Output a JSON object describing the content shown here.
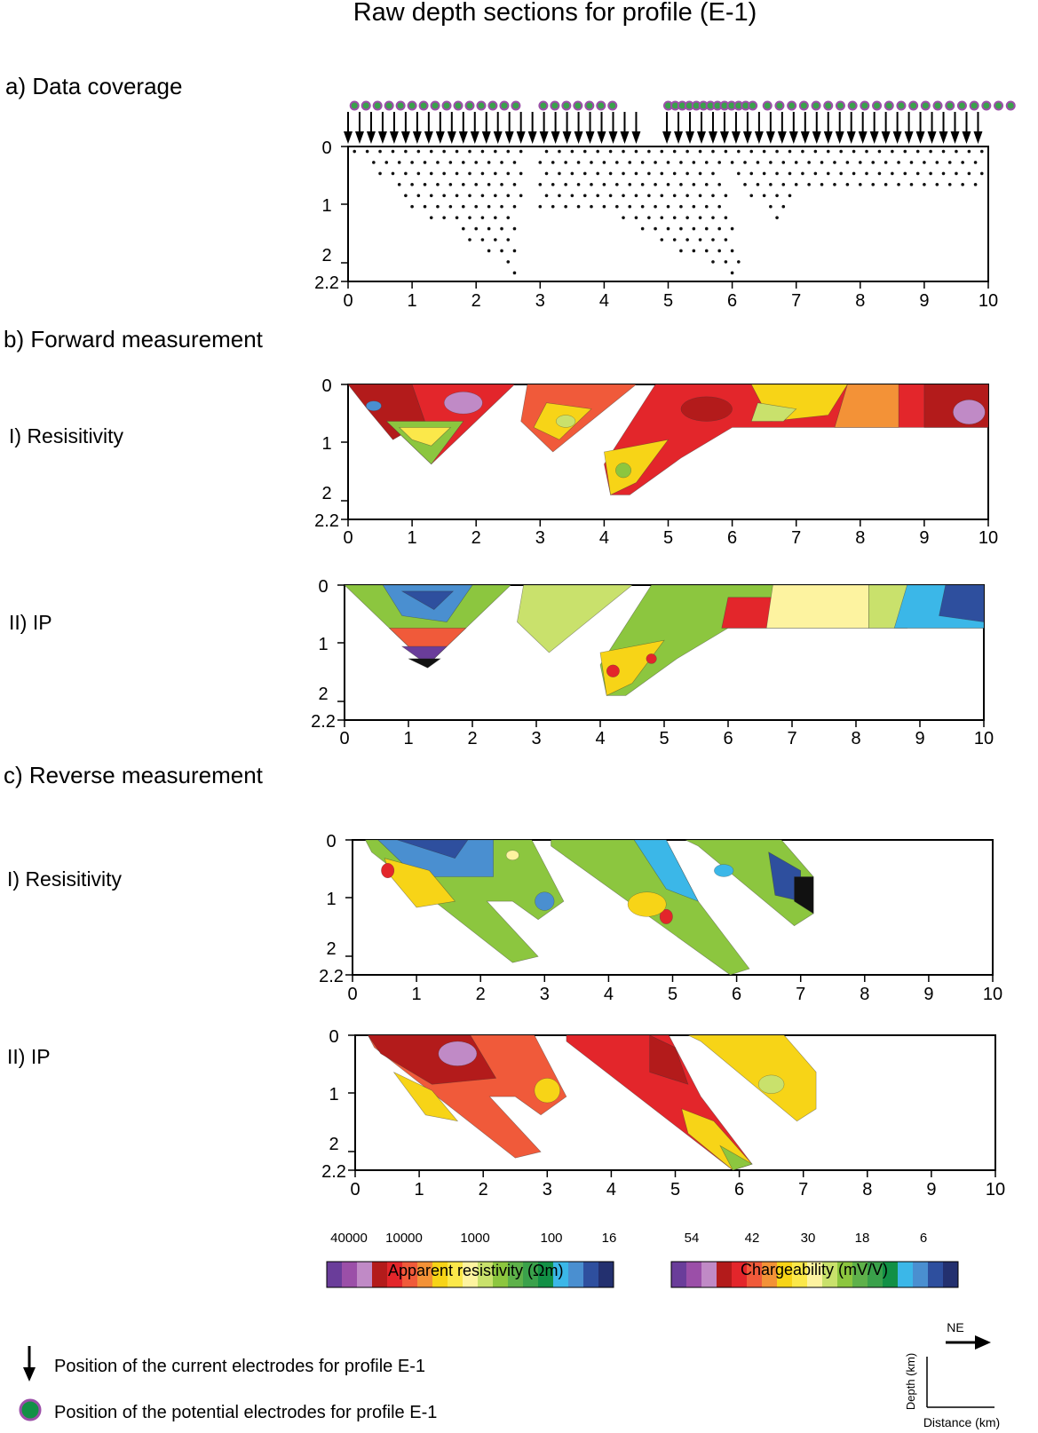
{
  "title": "Raw depth sections for profile (E-1)",
  "sections": {
    "a": {
      "label": "a)  Data coverage"
    },
    "b": {
      "label": "b) Forward measurement",
      "res": "I)  Resisitivity",
      "ip": "II) IP"
    },
    "c": {
      "label": "c) Reverse measurement",
      "res": "I)  Resisitivity",
      "ip": "II) IP"
    }
  },
  "axes": {
    "x_ticks": [
      "0",
      "1",
      "2",
      "3",
      "4",
      "5",
      "6",
      "7",
      "8",
      "9",
      "10"
    ],
    "y_ticks": [
      "0",
      "1",
      "2",
      "2.2"
    ]
  },
  "resistivity_scale": {
    "title": "Apparent resistivity (Ωm)",
    "labels": [
      "40000",
      "10000",
      "1000",
      "100",
      "16"
    ],
    "colors": [
      "#6a3d9a",
      "#9b4fa8",
      "#c08ac6",
      "#b31b1b",
      "#e3262b",
      "#f05a3a",
      "#f39237",
      "#f7d417",
      "#fbe84a",
      "#fdf3a0",
      "#c9e16c",
      "#8cc63f",
      "#5eb14a",
      "#3aa14b",
      "#129046",
      "#3bb7e8",
      "#4a8fd0",
      "#2e4f9e",
      "#23306f"
    ]
  },
  "chargeability_scale": {
    "title": "Chargeability (mV/V)",
    "labels": [
      "54",
      "42",
      "30",
      "18",
      "6"
    ],
    "colors": [
      "#6a3d9a",
      "#9b4fa8",
      "#c08ac6",
      "#b31b1b",
      "#e3262b",
      "#f05a3a",
      "#f39237",
      "#f7d417",
      "#fbe84a",
      "#fdf3a0",
      "#c9e16c",
      "#8cc63f",
      "#5eb14a",
      "#3aa14b",
      "#129046",
      "#3bb7e8",
      "#4a8fd0",
      "#2e4f9e",
      "#23306f"
    ]
  },
  "legend": {
    "current": "Position of the current electrodes for profile E-1",
    "potential": "Position of the potential electrodes for profile E-1"
  },
  "orientation": {
    "ne": "NE",
    "depth": "Depth (km)",
    "distance": "Distance (km)"
  }
}
